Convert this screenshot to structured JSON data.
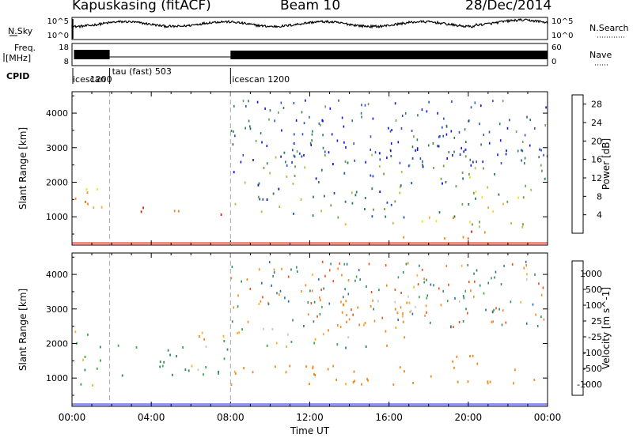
{
  "header": {
    "station": "Kapuskasing (fitACF)",
    "beam": "Beam 10",
    "date": "28/Dec/2014"
  },
  "time_axis": {
    "ticks": [
      "00:00",
      "04:00",
      "08:00",
      "12:00",
      "16:00",
      "20:00",
      "00:00"
    ],
    "label": "Time UT",
    "range_hours": [
      0,
      24
    ]
  },
  "panels": {
    "noise": {
      "left_label": "N.Sky",
      "right_label": "N.Search",
      "left_ticks": [
        "10^5",
        "10^0"
      ],
      "right_ticks": [
        "10^5",
        "10^0"
      ]
    },
    "freq": {
      "left_label_1": "Freq.",
      "left_label_2": "[MHz]",
      "right_label": "Nave",
      "left_ticks": [
        "18",
        "8"
      ],
      "right_ticks": [
        "60",
        "0"
      ]
    },
    "cpid": {
      "label": "CPID",
      "segments": [
        {
          "name": "icescan",
          "start_h": 0.0,
          "end_h": 1.9
        },
        {
          "name": "1200",
          "start_h": 1.9,
          "end_h": 1.9
        },
        {
          "name": "tau (fast) 503",
          "start_h": 1.9,
          "end_h": 8.0
        },
        {
          "name": "icescan 1200",
          "start_h": 8.0,
          "end_h": 24.0
        }
      ]
    }
  },
  "chart_data": [
    {
      "type": "heatmap",
      "title": "",
      "quantity": "Power",
      "colorbar_label": "Power [dB]",
      "colorbar_ticks": [
        "4",
        "8",
        "12",
        "16",
        "20",
        "24",
        "28"
      ],
      "colorbar_range": [
        0,
        30
      ],
      "colors": [
        "#1010e0",
        "#2850b8",
        "#2d7a55",
        "#6aa050",
        "#a5c450",
        "#f0e02a",
        "#f5b030",
        "#f08a20",
        "#ec6a18",
        "#e02010"
      ],
      "xlabel": "Time UT",
      "ylabel": "Slant Range [km]",
      "yticks": [
        "1000",
        "2000",
        "3000",
        "4000"
      ],
      "xlim_hours": [
        0,
        24
      ],
      "ylim_km": [
        180,
        4620
      ],
      "scatter_regions_approx": [
        {
          "t_start": 0.0,
          "t_end": 1.6,
          "range_low": 600,
          "range_high": 1900,
          "level": 20
        },
        {
          "t_start": 3.0,
          "t_end": 6.2,
          "range_low": 1100,
          "range_high": 1400,
          "level": 27
        },
        {
          "t_start": 6.8,
          "t_end": 8.0,
          "range_low": 950,
          "range_high": 1150,
          "level": 28
        },
        {
          "t_start": 8.0,
          "t_end": 20.0,
          "range_low": 1000,
          "range_high": 3000,
          "level": 8
        },
        {
          "t_start": 13.5,
          "t_end": 20.0,
          "range_low": 800,
          "range_high": 1050,
          "level": 18
        },
        {
          "t_start": 16.2,
          "t_end": 21.3,
          "range_low": 350,
          "range_high": 650,
          "level": 28
        },
        {
          "t_start": 20.0,
          "t_end": 24.0,
          "range_low": 700,
          "range_high": 2500,
          "level": 13
        }
      ]
    },
    {
      "type": "heatmap",
      "title": "",
      "quantity": "Velocity",
      "colorbar_label": "Velocity [m s^-1]",
      "colorbar_ticks": [
        "1000",
        "500",
        "100",
        "25",
        "-25",
        "-100",
        "-500",
        "-1000"
      ],
      "colorbar_range": [
        -1200,
        1200
      ],
      "colors": [
        "#1a30d8",
        "#2a6bb0",
        "#2f8a60",
        "#3aa94a",
        "#79c040",
        "#c8c8c8",
        "#c8c8c8",
        "#f5b030",
        "#f08a20",
        "#e85018",
        "#e01010"
      ],
      "xlabel": "Time UT",
      "ylabel": "Slant Range [km]",
      "yticks": [
        "1000",
        "2000",
        "3000",
        "4000"
      ],
      "xlim_hours": [
        0,
        24
      ],
      "ylim_km": [
        180,
        4620
      ],
      "scatter_regions_approx": [
        {
          "t_start": 0.0,
          "t_end": 1.6,
          "range_low": 600,
          "range_high": 2400,
          "level": 0
        },
        {
          "t_start": 2.2,
          "t_end": 8.0,
          "range_low": 1000,
          "range_high": 2000,
          "level": 80
        },
        {
          "t_start": 6.0,
          "t_end": 16.0,
          "range_low": 1900,
          "range_high": 2500,
          "level": 0
        },
        {
          "t_start": 8.0,
          "t_end": 24.0,
          "range_low": 800,
          "range_high": 1400,
          "level": -200
        },
        {
          "t_start": 12.0,
          "t_end": 17.5,
          "range_low": 2200,
          "range_high": 3400,
          "level": -150
        },
        {
          "t_start": 19.0,
          "t_end": 21.0,
          "range_low": 1300,
          "range_high": 2100,
          "level": -300
        }
      ]
    }
  ]
}
